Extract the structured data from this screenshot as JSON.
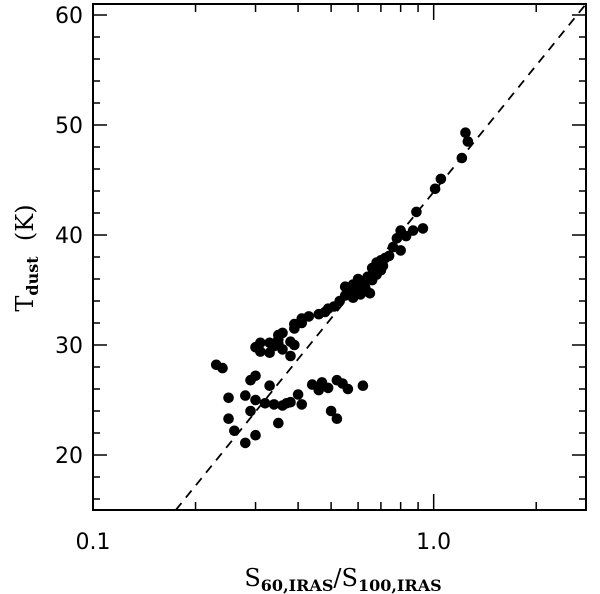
{
  "chart_data": {
    "type": "scatter",
    "title": "",
    "xlabel": {
      "main1": "S",
      "sub1": "60,IRAS",
      "slash": "/",
      "main2": "S",
      "sub2": "100,IRAS"
    },
    "ylabel": {
      "main": "T",
      "sub": "dust",
      "unit": "  (K)"
    },
    "xscale": "log",
    "xlim": [
      0.1,
      2.8
    ],
    "ylim": [
      15,
      61
    ],
    "x_ticks": [
      {
        "value": 0.1,
        "label": "0.1"
      },
      {
        "value": 1.0,
        "label": "1.0"
      }
    ],
    "y_ticks": [
      {
        "value": 20,
        "label": "20"
      },
      {
        "value": 30,
        "label": "30"
      },
      {
        "value": 40,
        "label": "40"
      },
      {
        "value": 50,
        "label": "50"
      },
      {
        "value": 60,
        "label": "60"
      }
    ],
    "grid": false,
    "legend": "none",
    "marker_color": "#000000",
    "series": [
      {
        "points": [
          [
            1.24,
            49.3
          ],
          [
            1.26,
            48.5
          ],
          [
            1.21,
            47.0
          ],
          [
            1.05,
            45.1
          ],
          [
            1.01,
            44.2
          ],
          [
            0.89,
            42.1
          ],
          [
            0.93,
            40.6
          ],
          [
            0.87,
            40.4
          ],
          [
            0.83,
            39.9
          ],
          [
            0.8,
            40.4
          ],
          [
            0.78,
            39.7
          ],
          [
            0.76,
            38.9
          ],
          [
            0.8,
            38.6
          ],
          [
            0.74,
            38.1
          ],
          [
            0.72,
            37.9
          ],
          [
            0.7,
            37.7
          ],
          [
            0.68,
            37.5
          ],
          [
            0.71,
            37.2
          ],
          [
            0.66,
            37.0
          ],
          [
            0.7,
            36.8
          ],
          [
            0.68,
            36.4
          ],
          [
            0.64,
            36.2
          ],
          [
            0.6,
            36.0
          ],
          [
            0.66,
            35.9
          ],
          [
            0.62,
            35.6
          ],
          [
            0.58,
            35.5
          ],
          [
            0.55,
            35.3
          ],
          [
            0.63,
            35.2
          ],
          [
            0.6,
            35.1
          ],
          [
            0.57,
            34.9
          ],
          [
            0.65,
            34.7
          ],
          [
            0.55,
            34.5
          ],
          [
            0.58,
            34.3
          ],
          [
            0.61,
            34.6
          ],
          [
            0.53,
            34.0
          ],
          [
            0.51,
            33.5
          ],
          [
            0.49,
            33.3
          ],
          [
            0.48,
            33.0
          ],
          [
            0.46,
            32.8
          ],
          [
            0.43,
            32.6
          ],
          [
            0.41,
            32.4
          ],
          [
            0.41,
            32.0
          ],
          [
            0.39,
            31.9
          ],
          [
            0.39,
            31.5
          ],
          [
            0.36,
            31.1
          ],
          [
            0.35,
            30.9
          ],
          [
            0.38,
            30.3
          ],
          [
            0.39,
            30.0
          ],
          [
            0.35,
            30.1
          ],
          [
            0.34,
            29.9
          ],
          [
            0.33,
            30.2
          ],
          [
            0.31,
            30.2
          ],
          [
            0.3,
            29.8
          ],
          [
            0.31,
            29.4
          ],
          [
            0.33,
            29.3
          ],
          [
            0.36,
            29.6
          ],
          [
            0.38,
            29.0
          ],
          [
            0.35,
            30.5
          ],
          [
            0.23,
            28.2
          ],
          [
            0.24,
            27.9
          ],
          [
            0.29,
            26.8
          ],
          [
            0.3,
            27.2
          ],
          [
            0.33,
            26.3
          ],
          [
            0.28,
            25.4
          ],
          [
            0.3,
            25.0
          ],
          [
            0.32,
            24.7
          ],
          [
            0.34,
            24.6
          ],
          [
            0.36,
            24.5
          ],
          [
            0.38,
            24.8
          ],
          [
            0.4,
            25.5
          ],
          [
            0.41,
            24.6
          ],
          [
            0.44,
            26.4
          ],
          [
            0.47,
            26.6
          ],
          [
            0.49,
            26.1
          ],
          [
            0.5,
            24.0
          ],
          [
            0.52,
            26.8
          ],
          [
            0.54,
            26.5
          ],
          [
            0.56,
            26.0
          ],
          [
            0.62,
            26.3
          ],
          [
            0.52,
            23.3
          ],
          [
            0.25,
            25.2
          ],
          [
            0.25,
            23.3
          ],
          [
            0.26,
            22.2
          ],
          [
            0.28,
            21.1
          ],
          [
            0.3,
            21.8
          ],
          [
            0.29,
            24.0
          ],
          [
            0.35,
            22.9
          ],
          [
            0.37,
            24.7
          ],
          [
            0.46,
            25.9
          ]
        ]
      }
    ],
    "reference_line": {
      "style": "dashed",
      "x": [
        0.175,
        2.8
      ],
      "y": [
        15,
        61
      ]
    }
  }
}
